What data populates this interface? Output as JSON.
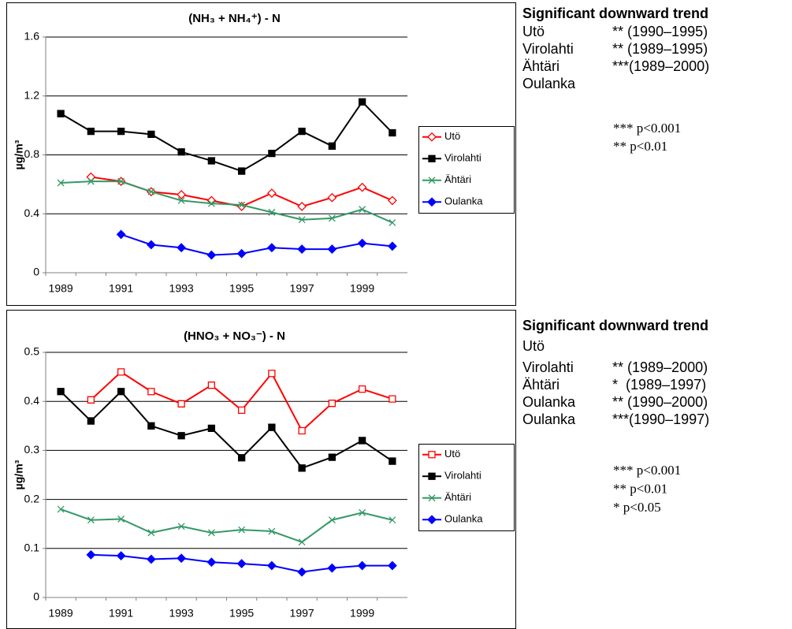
{
  "chart_data": [
    {
      "type": "line",
      "title": "(NH₃ + NH₄⁺) - N",
      "y_label": "µg/m³",
      "categories": [
        "1989",
        null,
        "1991",
        null,
        "1993",
        null,
        "1995",
        null,
        "1997",
        null,
        "1999",
        null
      ],
      "ylim": [
        0,
        1.6
      ],
      "yticks": [
        0,
        0.4,
        0.8,
        1.2,
        1.6
      ],
      "grid": true,
      "series": [
        {
          "name": "Utö",
          "color": "#ff0000",
          "marker": "diamond-open",
          "values": [
            null,
            0.65,
            0.62,
            0.55,
            0.53,
            0.49,
            0.45,
            0.54,
            0.45,
            0.51,
            0.58,
            0.49
          ]
        },
        {
          "name": "Virolahti",
          "color": "#000000",
          "marker": "square",
          "values": [
            1.08,
            0.96,
            0.96,
            0.94,
            0.82,
            0.76,
            0.69,
            0.81,
            0.96,
            0.86,
            1.16,
            0.95
          ]
        },
        {
          "name": "Ähtäri",
          "color": "#339966",
          "marker": "cross",
          "values": [
            0.61,
            0.62,
            0.62,
            0.55,
            0.49,
            0.47,
            0.46,
            0.41,
            0.36,
            0.37,
            0.43,
            0.34
          ]
        },
        {
          "name": "Oulanka",
          "color": "#0000ff",
          "marker": "diamond",
          "values": [
            null,
            null,
            0.26,
            0.19,
            0.17,
            0.12,
            0.13,
            0.17,
            0.16,
            0.16,
            0.2,
            0.18
          ]
        }
      ]
    },
    {
      "type": "line",
      "title": "(HNO₃ + NO₃⁻) - N",
      "y_label": "µg/m³",
      "categories": [
        "1989",
        null,
        "1991",
        null,
        "1993",
        null,
        "1995",
        null,
        "1997",
        null,
        "1999",
        null
      ],
      "ylim": [
        0,
        0.5
      ],
      "yticks": [
        0,
        0.1,
        0.2,
        0.3,
        0.4,
        0.5
      ],
      "grid": true,
      "series": [
        {
          "name": "Utö",
          "color": "#ff0000",
          "marker": "square-open",
          "values": [
            null,
            0.403,
            0.46,
            0.42,
            0.395,
            0.433,
            0.382,
            0.457,
            0.34,
            0.396,
            0.425,
            0.405
          ]
        },
        {
          "name": "Virolahti",
          "color": "#000000",
          "marker": "square",
          "values": [
            0.42,
            0.36,
            0.42,
            0.35,
            0.33,
            0.345,
            0.285,
            0.347,
            0.264,
            0.286,
            0.32,
            0.278
          ]
        },
        {
          "name": "Ähtäri",
          "color": "#339966",
          "marker": "cross",
          "values": [
            0.18,
            0.158,
            0.16,
            0.132,
            0.145,
            0.132,
            0.138,
            0.135,
            0.113,
            0.158,
            0.173,
            0.158
          ]
        },
        {
          "name": "Oulanka",
          "color": "#0000ff",
          "marker": "diamond",
          "values": [
            null,
            0.087,
            0.085,
            0.078,
            0.08,
            0.072,
            0.069,
            0.065,
            0.052,
            0.06,
            0.065,
            0.065
          ]
        }
      ]
    }
  ],
  "trend_notes": [
    {
      "heading": "Significant downward trend",
      "rows": [
        {
          "site": "Utö",
          "trend": "** (1990–1995)"
        },
        {
          "site": "Virolahti",
          "trend": "** (1989–1995)"
        },
        {
          "site": "Ähtäri",
          "trend": "***(1989–2000)"
        },
        {
          "site": "Oulanka"
        }
      ],
      "significance": [
        "*** p<0.001",
        "** p<0.01"
      ]
    },
    {
      "heading": "Significant downward trend",
      "rows": [
        {
          "site": "Utö"
        },
        {
          "site": "Virolahti",
          "trend": "** (1989–2000)"
        },
        {
          "site": "Ähtäri",
          "trend": "*  (1989–1997)"
        },
        {
          "site": "Oulanka",
          "trend": "** (1990–2000)"
        },
        {
          "site": "Oulanka",
          "trend": "***(1990–1997)"
        }
      ],
      "significance": [
        "*** p<0.001",
        "** p<0.01",
        "* p<0.05"
      ]
    }
  ]
}
